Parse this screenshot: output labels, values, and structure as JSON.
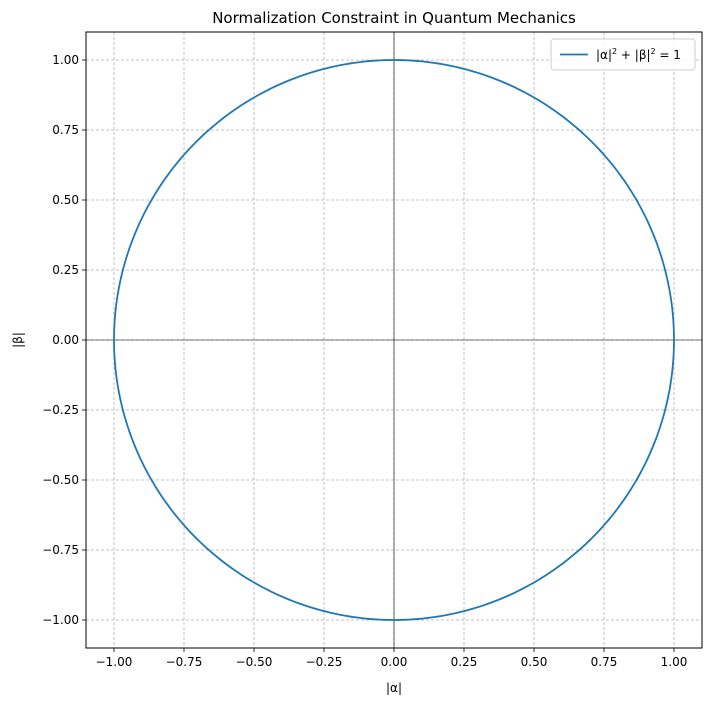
{
  "chart_data": {
    "type": "line",
    "title": "Normalization Constraint in Quantum Mechanics",
    "xlabel": "|α|",
    "ylabel": "|β|",
    "xlim": [
      -1.1,
      1.1
    ],
    "ylim": [
      -1.1,
      1.1
    ],
    "xticks": [
      -1.0,
      -0.75,
      -0.5,
      -0.25,
      0.0,
      0.25,
      0.5,
      0.75,
      1.0
    ],
    "yticks": [
      -1.0,
      -0.75,
      -0.5,
      -0.25,
      0.0,
      0.25,
      0.5,
      0.75,
      1.0
    ],
    "xtick_labels": [
      "−1.00",
      "−0.75",
      "−0.50",
      "−0.25",
      "0.00",
      "0.25",
      "0.50",
      "0.75",
      "1.00"
    ],
    "ytick_labels": [
      "−1.00",
      "−0.75",
      "−0.50",
      "−0.25",
      "0.00",
      "0.25",
      "0.50",
      "0.75",
      "1.00"
    ],
    "grid": true,
    "grid_style": "dashed",
    "reference_lines": {
      "x": 0,
      "y": 0
    },
    "legend": {
      "position": "top-right"
    },
    "series": [
      {
        "name": "|α|² + |β|² = 1",
        "legend_parts": {
          "a": "|α|",
          "sup1": "2",
          "plus": " + |β|",
          "sup2": "2",
          "eq": " = 1"
        },
        "shape": "unit-circle",
        "radius": 1.0,
        "center": [
          0,
          0
        ],
        "color": "#1f77b4"
      }
    ]
  }
}
